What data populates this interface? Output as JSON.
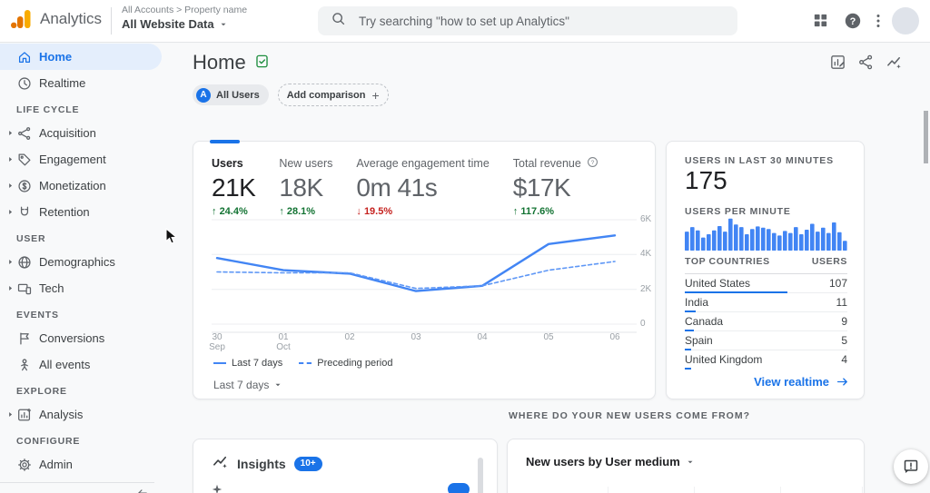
{
  "header": {
    "product_name": "Analytics",
    "breadcrumb": "All Accounts > Property name",
    "property": "All Website Data",
    "search": {
      "placeholder": "Try searching \"how to set up Analytics\""
    }
  },
  "sidebar": {
    "sections": [
      {
        "label": "",
        "items": [
          {
            "label": "Home",
            "icon": "home-icon",
            "active": true
          },
          {
            "label": "Realtime",
            "icon": "clock-icon"
          }
        ]
      },
      {
        "label": "LIFE CYCLE",
        "items": [
          {
            "label": "Acquisition",
            "icon": "acquisition-icon",
            "expandable": true
          },
          {
            "label": "Engagement",
            "icon": "engagement-icon",
            "expandable": true
          },
          {
            "label": "Monetization",
            "icon": "monetization-icon",
            "expandable": true
          },
          {
            "label": "Retention",
            "icon": "retention-icon",
            "expandable": true
          }
        ]
      },
      {
        "label": "USER",
        "items": [
          {
            "label": "Demographics",
            "icon": "demographics-icon",
            "expandable": true
          },
          {
            "label": "Tech",
            "icon": "tech-icon",
            "expandable": true
          }
        ]
      },
      {
        "label": "EVENTS",
        "items": [
          {
            "label": "Conversions",
            "icon": "conversions-icon"
          },
          {
            "label": "All events",
            "icon": "all-events-icon"
          }
        ]
      },
      {
        "label": "EXPLORE",
        "items": [
          {
            "label": "Analysis",
            "icon": "analysis-icon",
            "expandable": true
          }
        ]
      },
      {
        "label": "CONFIGURE",
        "items": [
          {
            "label": "Admin",
            "icon": "admin-icon"
          }
        ]
      }
    ]
  },
  "toolbar": {
    "title": "Home",
    "comparison_chip": {
      "avatar_letter": "A",
      "label": "All Users"
    },
    "add_comparison_label": "Add comparison"
  },
  "overview": {
    "metrics": [
      {
        "label": "Users",
        "value": "21K",
        "delta": "24.4%",
        "direction": "up",
        "active": true
      },
      {
        "label": "New users",
        "value": "18K",
        "delta": "28.1%",
        "direction": "up"
      },
      {
        "label": "Average engagement time",
        "value": "0m 41s",
        "delta": "19.5%",
        "direction": "down"
      },
      {
        "label": "Total revenue",
        "value": "$17K",
        "delta": "117.6%",
        "direction": "up",
        "help": true
      }
    ],
    "range_selector": "Last 7 days"
  },
  "chart_data": [
    {
      "type": "line",
      "title": "Users by day (last 7 days vs preceding period)",
      "x_labels": [
        [
          "30",
          "Sep"
        ],
        [
          "01",
          "Oct"
        ],
        [
          "02"
        ],
        [
          "03"
        ],
        [
          "04"
        ],
        [
          "05"
        ],
        [
          "06"
        ]
      ],
      "series": [
        {
          "name": "Last 7 days",
          "style": "solid",
          "values": [
            3800,
            3100,
            2900,
            1900,
            2200,
            4600,
            5100
          ]
        },
        {
          "name": "Preceding period",
          "style": "dashed",
          "values": [
            3000,
            2950,
            2950,
            2050,
            2200,
            3100,
            3600
          ]
        }
      ],
      "ylim": [
        0,
        6000
      ],
      "yticks": [
        {
          "value": 0,
          "label": "0"
        },
        {
          "value": 2000,
          "label": "2K"
        },
        {
          "value": 4000,
          "label": "4K"
        },
        {
          "value": 6000,
          "label": "6K"
        }
      ],
      "grid": true,
      "legend_position": "bottom"
    },
    {
      "type": "bar",
      "title": "Users per minute",
      "values": [
        58,
        72,
        62,
        40,
        50,
        62,
        75,
        58,
        98,
        80,
        72,
        50,
        66,
        74,
        70,
        66,
        54,
        46,
        60,
        54,
        72,
        50,
        64,
        82,
        58,
        70,
        54,
        86,
        56,
        30
      ],
      "ylim": [
        0,
        100
      ]
    }
  ],
  "realtime": {
    "title": "USERS IN LAST 30 MINUTES",
    "value": "175",
    "per_minute_label": "USERS PER MINUTE",
    "table": {
      "country_header": "TOP COUNTRIES",
      "users_header": "USERS",
      "rows": [
        {
          "country": "United States",
          "users": 107
        },
        {
          "country": "India",
          "users": 11
        },
        {
          "country": "Canada",
          "users": 9
        },
        {
          "country": "Spain",
          "users": 5
        },
        {
          "country": "United Kingdom",
          "users": 4
        }
      ]
    },
    "link_label": "View realtime"
  },
  "bottom": {
    "section_label": "WHERE DO YOUR NEW USERS COME FROM?",
    "insights": {
      "title": "Insights",
      "badge": "10+"
    },
    "new_users_card": {
      "selector_label": "New users by User medium"
    }
  },
  "colors": {
    "accent_blue": "#1a73e8",
    "chart_blue": "#4285f4",
    "delta_green": "#137333",
    "delta_red": "#c5221f",
    "logo_amber": "#f9ab00",
    "logo_orange": "#e37400"
  }
}
